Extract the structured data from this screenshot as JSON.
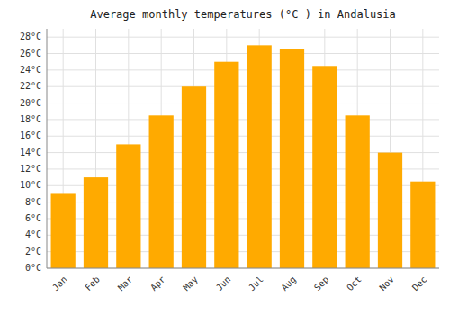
{
  "chart_data": {
    "type": "bar",
    "title": "Average monthly temperatures (°C ) in Andalusia",
    "categories": [
      "Jan",
      "Feb",
      "Mar",
      "Apr",
      "May",
      "Jun",
      "Jul",
      "Aug",
      "Sep",
      "Oct",
      "Nov",
      "Dec"
    ],
    "values": [
      9,
      11,
      15,
      18.5,
      22,
      25,
      27,
      26.5,
      24.5,
      18.5,
      14,
      10.5
    ],
    "color": "#FFAA00",
    "ylim": [
      0,
      29
    ],
    "yticks": [
      {
        "value": 0,
        "label": "0°C"
      },
      {
        "value": 2,
        "label": "2°C"
      },
      {
        "value": 4,
        "label": "4°C"
      },
      {
        "value": 6,
        "label": "6°C"
      },
      {
        "value": 8,
        "label": "8°C"
      },
      {
        "value": 10,
        "label": "10°C"
      },
      {
        "value": 12,
        "label": "12°C"
      },
      {
        "value": 14,
        "label": "14°C"
      },
      {
        "value": 16,
        "label": "16°C"
      },
      {
        "value": 18,
        "label": "18°C"
      },
      {
        "value": 20,
        "label": "20°C"
      },
      {
        "value": 22,
        "label": "22°C"
      },
      {
        "value": 24,
        "label": "24°C"
      },
      {
        "value": 26,
        "label": "26°C"
      },
      {
        "value": 28,
        "label": "28°C"
      }
    ],
    "grid": true
  }
}
